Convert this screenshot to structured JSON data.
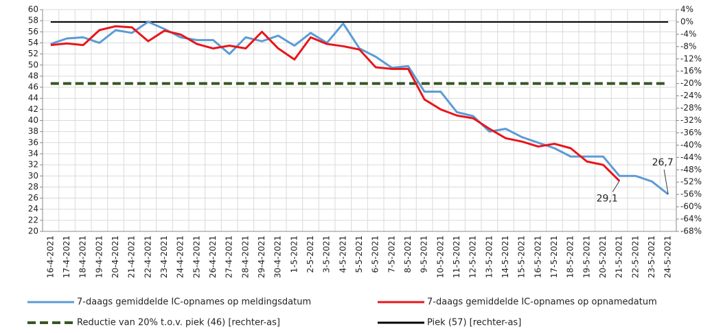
{
  "chart_data": {
    "type": "line",
    "categories": [
      "16-4-2021",
      "17-4-2021",
      "18-4-2021",
      "19-4-2021",
      "20-4-2021",
      "21-4-2021",
      "22-4-2021",
      "23-4-2021",
      "24-4-2021",
      "25-4-2021",
      "26-4-2021",
      "27-4-2021",
      "28-4-2021",
      "29-4-2021",
      "30-4-2021",
      "1-5-2021",
      "2-5-2021",
      "3-5-2021",
      "4-5-2021",
      "5-5-2021",
      "6-5-2021",
      "7-5-2021",
      "8-5-2021",
      "9-5-2021",
      "10-5-2021",
      "11-5-2021",
      "12-5-2021",
      "13-5-2021",
      "14-5-2021",
      "15-5-2021",
      "16-5-2021",
      "17-5-2021",
      "18-5-2021",
      "19-5-2021",
      "20-5-2021",
      "21-5-2021",
      "22-5-2021",
      "23-5-2021",
      "24-5-2021"
    ],
    "ylim": [
      20,
      60
    ],
    "yticks": [
      20,
      22,
      24,
      26,
      28,
      30,
      32,
      34,
      36,
      38,
      40,
      42,
      44,
      46,
      48,
      50,
      52,
      54,
      56,
      58,
      60
    ],
    "y2lim": [
      -68,
      4
    ],
    "y2ticks": [
      {
        "value": -68,
        "label": "-68%"
      },
      {
        "value": -64,
        "label": "-64%"
      },
      {
        "value": -60,
        "label": "-60%"
      },
      {
        "value": -56,
        "label": "-56%"
      },
      {
        "value": -52,
        "label": "-52%"
      },
      {
        "value": -48,
        "label": "-48%"
      },
      {
        "value": -44,
        "label": "-44%"
      },
      {
        "value": -40,
        "label": "-40%"
      },
      {
        "value": -36,
        "label": "-36%"
      },
      {
        "value": -32,
        "label": "-32%"
      },
      {
        "value": -28,
        "label": "-28%"
      },
      {
        "value": -24,
        "label": "-24%"
      },
      {
        "value": -20,
        "label": "-20%"
      },
      {
        "value": -16,
        "label": "-16%"
      },
      {
        "value": -12,
        "label": "-12%"
      },
      {
        "value": -8,
        "label": "-8%"
      },
      {
        "value": -4,
        "label": "-4%"
      },
      {
        "value": 0,
        "label": "0%"
      },
      {
        "value": 4,
        "label": "4%"
      }
    ],
    "grid": true,
    "series": [
      {
        "name": "7-daags gemiddelde IC-opnames op meldingsdatum",
        "color": "#5b9bd5",
        "values": [
          53.8,
          54.8,
          55.0,
          54.0,
          56.3,
          55.8,
          57.8,
          56.5,
          55.0,
          54.5,
          54.5,
          52.0,
          55.0,
          54.3,
          55.3,
          53.5,
          55.8,
          54.0,
          57.5,
          53.0,
          51.5,
          49.5,
          49.8,
          45.2,
          45.2,
          41.5,
          40.8,
          38.0,
          38.5,
          37.0,
          36.0,
          35.0,
          33.5,
          33.5,
          33.5,
          30.0,
          30.0,
          29.0,
          26.7
        ],
        "value_labels": [
          null,
          null,
          null,
          null,
          null,
          null,
          null,
          null,
          null,
          null,
          null,
          null,
          null,
          null,
          null,
          null,
          null,
          null,
          null,
          null,
          null,
          null,
          null,
          null,
          null,
          null,
          null,
          null,
          null,
          null,
          null,
          null,
          null,
          null,
          null,
          null,
          null,
          null,
          "26,7"
        ]
      },
      {
        "name": "7-daags gemiddelde IC-opnames op opnamedatum",
        "color": "#e8151b",
        "values": [
          53.6,
          53.9,
          53.6,
          56.3,
          57.0,
          56.8,
          54.3,
          56.2,
          55.5,
          53.8,
          53.0,
          53.5,
          53.0,
          56.0,
          53.0,
          51.0,
          55.0,
          53.8,
          53.4,
          52.8,
          49.6,
          49.3,
          49.3,
          43.8,
          42.0,
          40.9,
          40.4,
          38.5,
          36.8,
          36.2,
          35.3,
          35.8,
          35.0,
          32.6,
          32.0,
          29.1,
          null,
          null,
          null
        ],
        "value_labels": [
          null,
          null,
          null,
          null,
          null,
          null,
          null,
          null,
          null,
          null,
          null,
          null,
          null,
          null,
          null,
          null,
          null,
          null,
          null,
          null,
          null,
          null,
          null,
          null,
          null,
          null,
          null,
          null,
          null,
          null,
          null,
          null,
          null,
          null,
          null,
          "29,1",
          null,
          null,
          null
        ]
      },
      {
        "name": "Reductie van 20% t.o.v. piek (46) [rechter-as]",
        "color": "#375623",
        "dashed": true,
        "axis": "y2",
        "values": [
          -20,
          -20,
          -20,
          -20,
          -20,
          -20,
          -20,
          -20,
          -20,
          -20,
          -20,
          -20,
          -20,
          -20,
          -20,
          -20,
          -20,
          -20,
          -20,
          -20,
          -20,
          -20,
          -20,
          -20,
          -20,
          -20,
          -20,
          -20,
          -20,
          -20,
          -20,
          -20,
          -20,
          -20,
          -20,
          -20,
          -20,
          -20,
          -20
        ]
      },
      {
        "name": "Piek (57) [rechter-as]",
        "color": "#000000",
        "axis": "y2",
        "values": [
          0,
          0,
          0,
          0,
          0,
          0,
          0,
          0,
          0,
          0,
          0,
          0,
          0,
          0,
          0,
          0,
          0,
          0,
          0,
          0,
          0,
          0,
          0,
          0,
          0,
          0,
          0,
          0,
          0,
          0,
          0,
          0,
          0,
          0,
          0,
          0,
          0,
          0,
          0
        ]
      }
    ]
  }
}
